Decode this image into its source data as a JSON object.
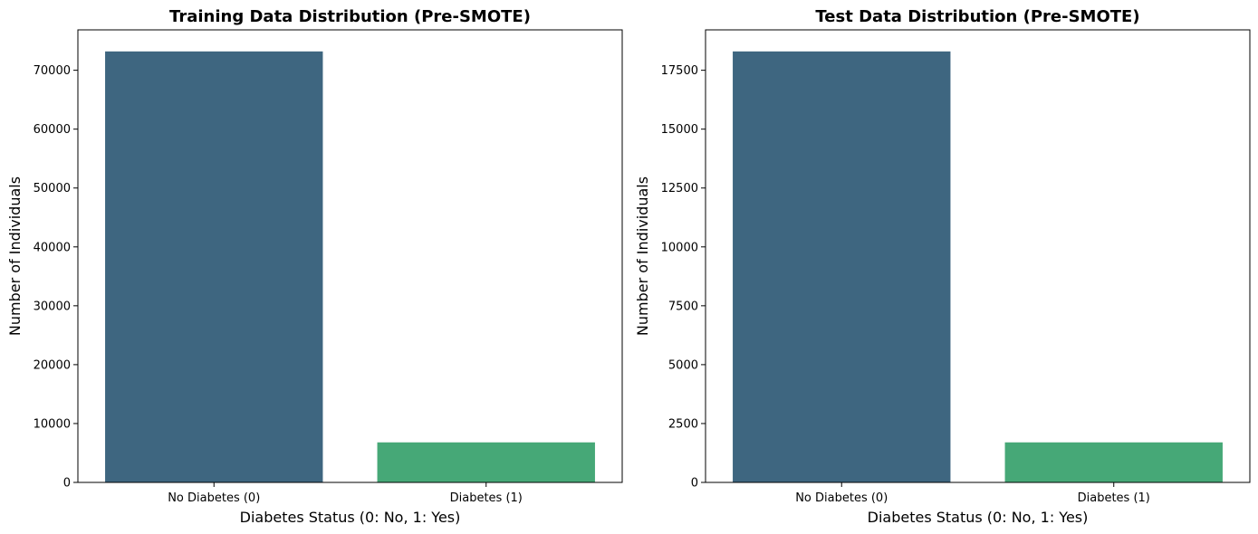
{
  "chart_data": [
    {
      "type": "bar",
      "title": "Training Data Distribution (Pre-SMOTE)",
      "xlabel": "Diabetes Status (0: No, 1: Yes)",
      "ylabel": "Number of Individuals",
      "categories": [
        "No Diabetes (0)",
        "Diabetes (1)"
      ],
      "values": [
        73200,
        6800
      ],
      "colors": [
        "#3e6680",
        "#46a877"
      ],
      "ylim": [
        0,
        76860
      ],
      "yticks": [
        0,
        10000,
        20000,
        30000,
        40000,
        50000,
        60000,
        70000
      ],
      "ytick_labels": [
        "0",
        "10000",
        "20000",
        "30000",
        "40000",
        "50000",
        "60000",
        "70000"
      ],
      "grid": false,
      "legend": "none"
    },
    {
      "type": "bar",
      "title": "Test Data Distribution (Pre-SMOTE)",
      "xlabel": "Diabetes Status (0: No, 1: Yes)",
      "ylabel": "Number of Individuals",
      "categories": [
        "No Diabetes (0)",
        "Diabetes (1)"
      ],
      "values": [
        18300,
        1700
      ],
      "colors": [
        "#3e6680",
        "#46a877"
      ],
      "ylim": [
        0,
        19215
      ],
      "yticks": [
        0,
        2500,
        5000,
        7500,
        10000,
        12500,
        15000,
        17500
      ],
      "ytick_labels": [
        "0",
        "2500",
        "5000",
        "7500",
        "10000",
        "12500",
        "15000",
        "17500"
      ],
      "grid": false,
      "legend": "none"
    }
  ]
}
